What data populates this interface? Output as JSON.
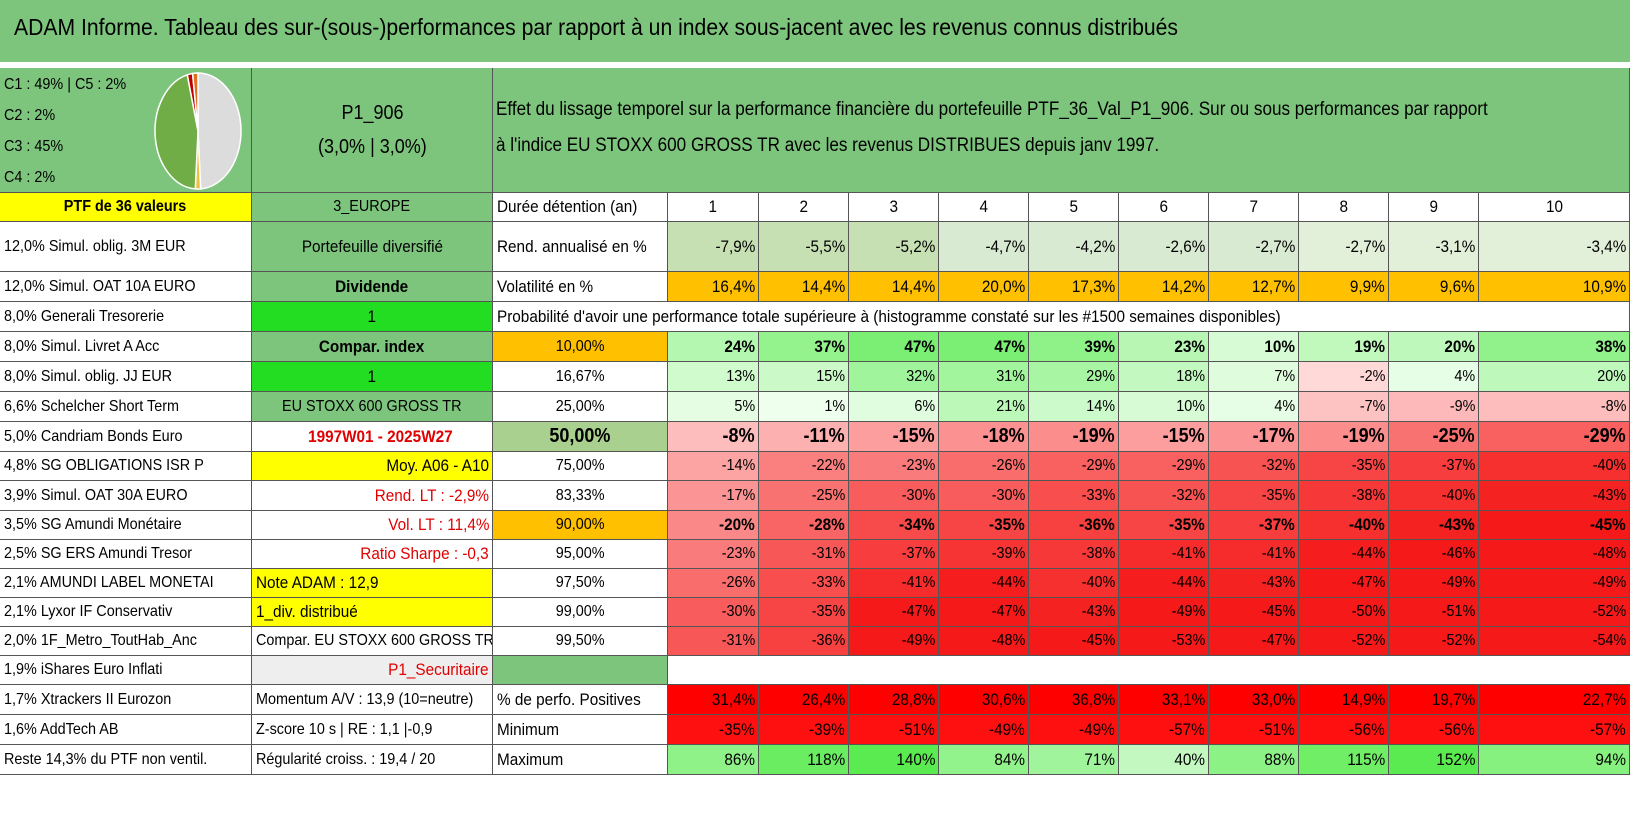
{
  "title": "ADAM Informe. Tableau des sur-(sous-)performances par rapport à un index sous-jacent avec les revenus connus distribués",
  "pie": {
    "labels": [
      "C1 : 49% | C5 : 2%",
      "C2 : 2%",
      "C3 : 45%",
      "C4 : 2%"
    ],
    "slices": [
      {
        "name": "C1",
        "pct": 49,
        "color": "#dcdcdc"
      },
      {
        "name": "C2",
        "pct": 2,
        "color": "#f0c040"
      },
      {
        "name": "C3",
        "pct": 45,
        "color": "#70ad47"
      },
      {
        "name": "C4",
        "pct": 2,
        "color": "#c00000"
      },
      {
        "name": "C5",
        "pct": 2,
        "color": "#e07020"
      }
    ]
  },
  "portfolio": {
    "code": "P1_906",
    "params": "(3,0% | 3,0%)",
    "description_line1": "Effet du lissage temporel sur la performance financière du portefeuille PTF_36_Val_P1_906. Sur ou sous performances par rapport",
    "description_line2": "à l'indice EU STOXX 600 GROSS TR avec les revenus DISTRIBUES depuis janv 1997."
  },
  "holdings_header": "PTF de 36 valeurs",
  "holdings": [
    "12,0% Simul. oblig. 3M EUR",
    "12,0% Simul. OAT 10A EURO",
    "8,0% Generali Tresorerie",
    "8,0% Simul. Livret A Acc",
    "8,0% Simul. oblig. JJ EUR",
    "6,6% Schelcher Short Term",
    "5,0% Candriam Bonds Euro",
    "4,8% SG OBLIGATIONS ISR P",
    "3,9% Simul. OAT 30A EURO",
    "3,5% SG Amundi Monétaire",
    "2,5% SG ERS Amundi Tresor",
    "2,1% AMUNDI LABEL MONETAI",
    "2,1% Lyxor IF Conservativ",
    "2,0% 1F_Metro_ToutHab_Anc",
    "1,9% iShares Euro Inflati",
    "1,7% Xtrackers II Eurozon",
    "1,6% AddTech AB",
    "Reste 14,3% du PTF non ventil."
  ],
  "info_col": [
    "3_EUROPE",
    "Portefeuille diversifié",
    "Dividende",
    "1",
    "Compar. index",
    "1",
    "EU STOXX 600 GROSS TR",
    "1997W01 - 2025W27",
    "Moy. A06 - A10",
    "Rend. LT : -2,9%",
    "Vol. LT : 11,4%",
    "Ratio Sharpe : -0,3",
    "Note ADAM : 12,9",
    "1_div. distribué",
    "Compar. EU STOXX 600 GROSS TR",
    "P1_Securitaire",
    "Momentum A/V : 13,9 (10=neutre)",
    "Z-score 10 s | RE : 1,1 |-0,9",
    "Régularité croiss. : 19,4 / 20"
  ],
  "table": {
    "holding_label": "Durée détention (an)",
    "years": [
      "1",
      "2",
      "3",
      "4",
      "5",
      "6",
      "7",
      "8",
      "9",
      "10"
    ],
    "rend_label": "Rend. annualisé en %",
    "rend": [
      "-7,9%",
      "-5,5%",
      "-5,2%",
      "-4,7%",
      "-4,2%",
      "-2,6%",
      "-2,7%",
      "-2,7%",
      "-3,1%",
      "-3,4%"
    ],
    "vol_label": "Volatilité en %",
    "vol": [
      "16,4%",
      "14,4%",
      "14,4%",
      "20,0%",
      "17,3%",
      "14,2%",
      "12,7%",
      "9,9%",
      "9,6%",
      "10,9%"
    ],
    "prob_title": "Probabilité d'avoir une performance totale supérieure à (histogramme constaté sur les #1500 semaines disponibles)",
    "prob_rows": [
      {
        "pct": "10,00%",
        "vals": [
          "24%",
          "37%",
          "47%",
          "47%",
          "39%",
          "23%",
          "10%",
          "19%",
          "20%",
          "38%"
        ]
      },
      {
        "pct": "16,67%",
        "vals": [
          "13%",
          "15%",
          "32%",
          "31%",
          "29%",
          "18%",
          "7%",
          "-2%",
          "4%",
          "20%"
        ]
      },
      {
        "pct": "25,00%",
        "vals": [
          "5%",
          "1%",
          "6%",
          "21%",
          "14%",
          "10%",
          "4%",
          "-7%",
          "-9%",
          "-8%"
        ]
      },
      {
        "pct": "50,00%",
        "vals": [
          "-8%",
          "-11%",
          "-15%",
          "-18%",
          "-19%",
          "-15%",
          "-17%",
          "-19%",
          "-25%",
          "-29%"
        ]
      },
      {
        "pct": "75,00%",
        "vals": [
          "-14%",
          "-22%",
          "-23%",
          "-26%",
          "-29%",
          "-29%",
          "-32%",
          "-35%",
          "-37%",
          "-40%"
        ]
      },
      {
        "pct": "83,33%",
        "vals": [
          "-17%",
          "-25%",
          "-30%",
          "-30%",
          "-33%",
          "-32%",
          "-35%",
          "-38%",
          "-40%",
          "-43%"
        ]
      },
      {
        "pct": "90,00%",
        "vals": [
          "-20%",
          "-28%",
          "-34%",
          "-35%",
          "-36%",
          "-35%",
          "-37%",
          "-40%",
          "-43%",
          "-45%"
        ]
      },
      {
        "pct": "95,00%",
        "vals": [
          "-23%",
          "-31%",
          "-37%",
          "-39%",
          "-38%",
          "-41%",
          "-41%",
          "-44%",
          "-46%",
          "-48%"
        ]
      },
      {
        "pct": "97,50%",
        "vals": [
          "-26%",
          "-33%",
          "-41%",
          "-44%",
          "-40%",
          "-44%",
          "-43%",
          "-47%",
          "-49%",
          "-49%"
        ]
      },
      {
        "pct": "99,00%",
        "vals": [
          "-30%",
          "-35%",
          "-47%",
          "-47%",
          "-43%",
          "-49%",
          "-45%",
          "-50%",
          "-51%",
          "-52%"
        ]
      },
      {
        "pct": "99,50%",
        "vals": [
          "-31%",
          "-36%",
          "-49%",
          "-48%",
          "-45%",
          "-53%",
          "-47%",
          "-52%",
          "-52%",
          "-54%"
        ]
      }
    ],
    "pos_label": "% de perfo. Positives",
    "pos": [
      "31,4%",
      "26,4%",
      "28,8%",
      "30,6%",
      "36,8%",
      "33,1%",
      "33,0%",
      "14,9%",
      "19,7%",
      "22,7%"
    ],
    "min_label": "Minimum",
    "min": [
      "-35%",
      "-39%",
      "-51%",
      "-49%",
      "-49%",
      "-57%",
      "-51%",
      "-56%",
      "-56%",
      "-57%"
    ],
    "max_label": "Maximum",
    "max": [
      "86%",
      "118%",
      "140%",
      "84%",
      "71%",
      "40%",
      "88%",
      "115%",
      "152%",
      "94%"
    ]
  },
  "colors": {
    "header_green": "#7dc57d",
    "bright_green": "#22dd22",
    "yellow": "#ffff00",
    "orange": "#ffc000",
    "red_text": "#e00000"
  }
}
